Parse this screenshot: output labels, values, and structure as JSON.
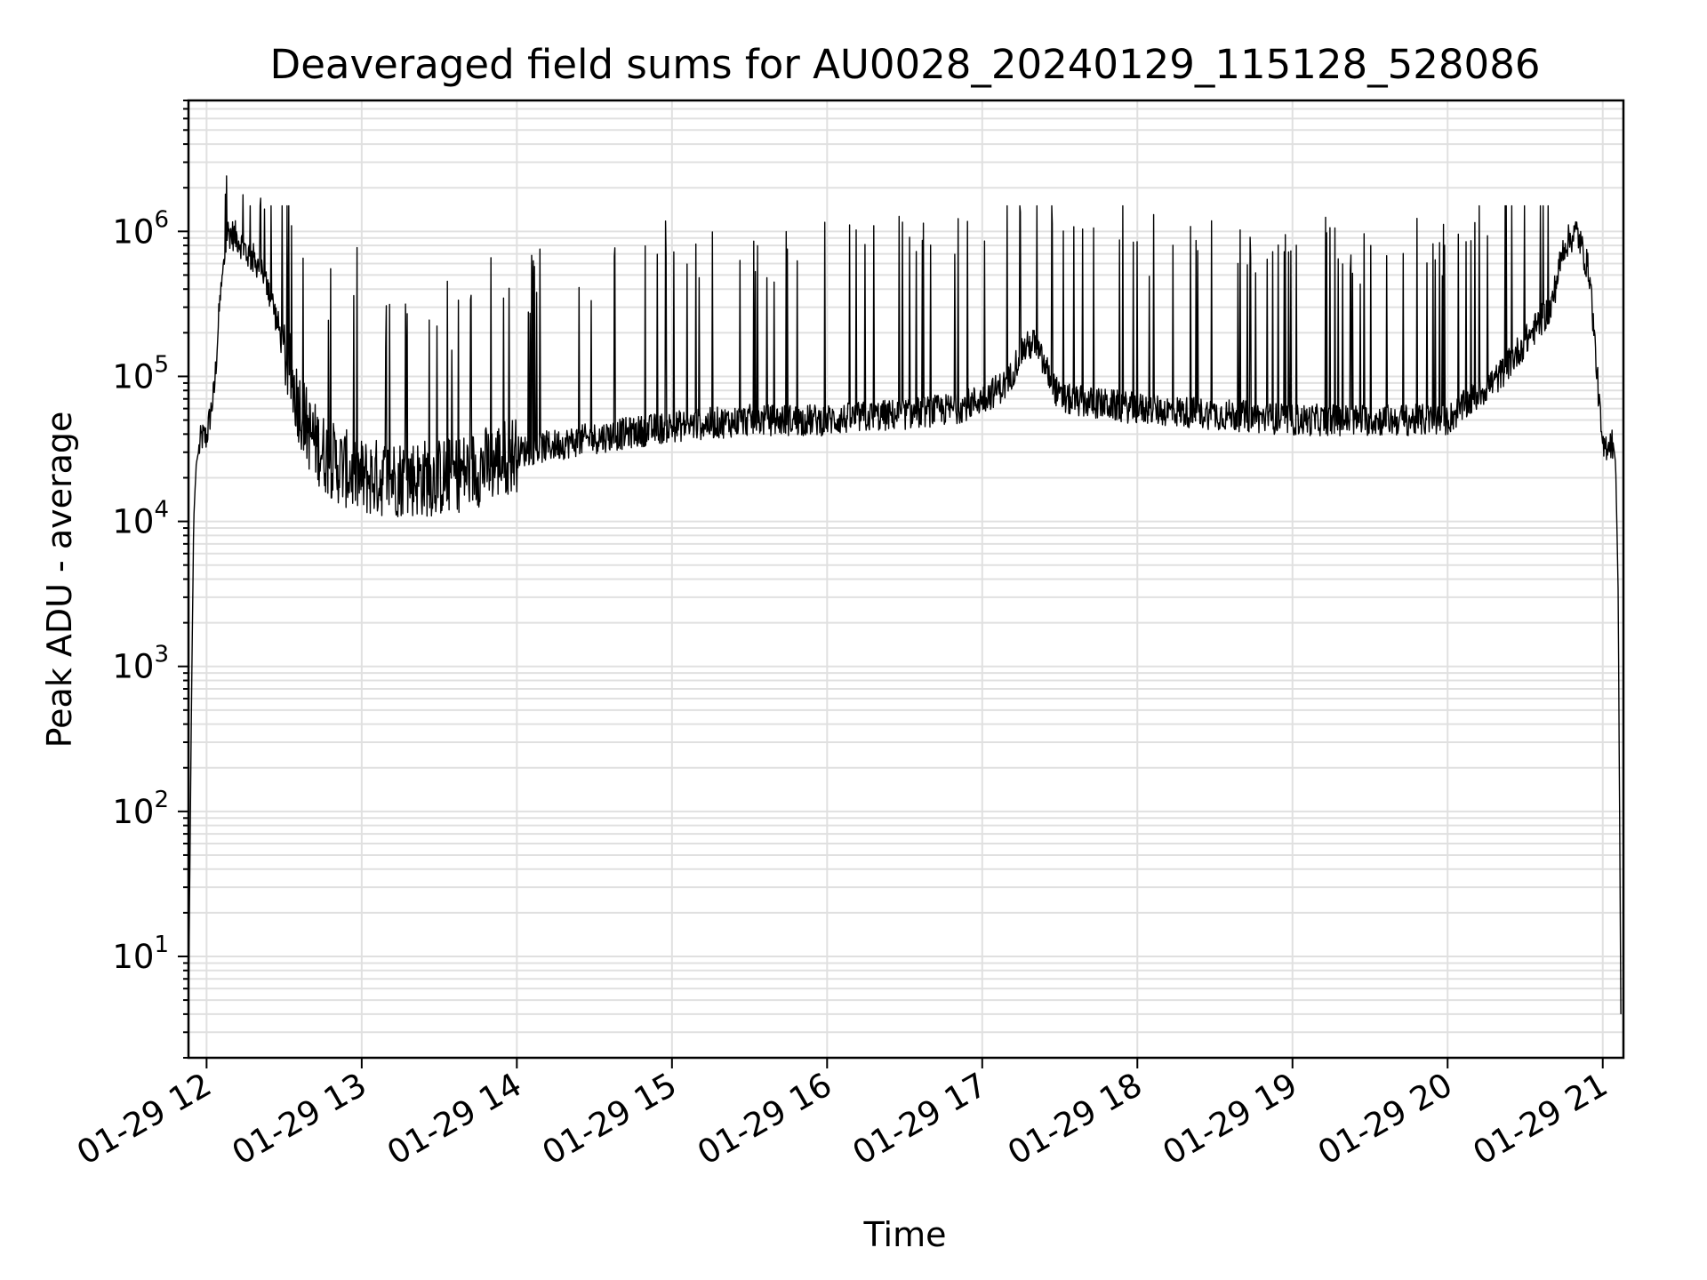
{
  "chart_data": {
    "type": "line",
    "title": "Deaveraged field sums for AU0028_20240129_115128_528086",
    "xlabel": "Time",
    "ylabel": "Peak ADU - average",
    "x_date": "01-29",
    "x_ticks": [
      "01-29 12",
      "01-29 13",
      "01-29 14",
      "01-29 15",
      "01-29 16",
      "01-29 17",
      "01-29 18",
      "01-29 19",
      "01-29 20",
      "01-29 21"
    ],
    "y_scale": "log",
    "ylim": [
      2,
      8000000
    ],
    "xlim": [
      "01-29 11:53",
      "01-29 21:08"
    ],
    "y_ticks": [
      {
        "base": "10",
        "exp": "1"
      },
      {
        "base": "10",
        "exp": "2"
      },
      {
        "base": "10",
        "exp": "3"
      },
      {
        "base": "10",
        "exp": "4"
      },
      {
        "base": "10",
        "exp": "5"
      },
      {
        "base": "10",
        "exp": "6"
      }
    ],
    "grid": true,
    "line_color": "#000000",
    "series": [
      {
        "x": [
          "11:53",
          "11:54",
          "11:55",
          "11:56",
          "11:58",
          "12:00",
          "12:03",
          "12:05",
          "12:08",
          "12:12",
          "12:16",
          "12:20",
          "12:25",
          "12:30",
          "12:35",
          "12:40",
          "12:45",
          "12:50",
          "13:00",
          "13:10",
          "13:20",
          "13:30",
          "13:40",
          "13:50",
          "14:00",
          "14:20",
          "14:40",
          "15:00",
          "15:30",
          "16:00",
          "16:30",
          "16:50",
          "17:00",
          "17:10",
          "17:15",
          "17:20",
          "17:30",
          "17:45",
          "18:00",
          "18:30",
          "19:00",
          "19:30",
          "20:00",
          "20:20",
          "20:40",
          "20:45",
          "20:50",
          "20:55",
          "21:00",
          "21:02",
          "21:04",
          "21:05",
          "21:06",
          "21:07"
        ],
        "y": [
          4,
          300,
          10000,
          25000,
          38000,
          38000,
          80000,
          300000,
          1000000,
          900000,
          700000,
          600000,
          350000,
          150000,
          70000,
          40000,
          30000,
          25000,
          20000,
          20000,
          20000,
          20000,
          22000,
          25000,
          30000,
          35000,
          40000,
          45000,
          50000,
          50000,
          55000,
          60000,
          70000,
          90000,
          150000,
          170000,
          70000,
          65000,
          60000,
          55000,
          50000,
          50000,
          50000,
          100000,
          300000,
          800000,
          1000000,
          500000,
          30000,
          35000,
          35000,
          25000,
          3000,
          4
        ]
      }
    ]
  }
}
